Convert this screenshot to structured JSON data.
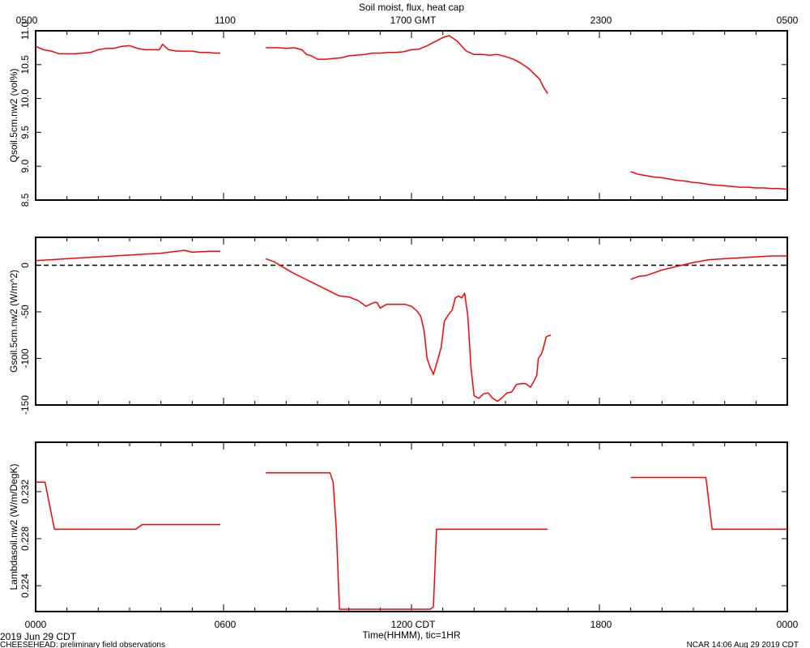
{
  "title": "Soil moist, flux, heat cap",
  "top_axis": {
    "ticks": [
      "0500",
      "1100",
      "1700 GMT",
      "2300",
      "0500"
    ]
  },
  "bottom_axis": {
    "ticks": [
      "0000",
      "0600",
      "1200 CDT",
      "1800",
      "0000"
    ],
    "label": "Time(HHMM), tic=1HR",
    "start_date": "2019 Jun 29 CDT"
  },
  "footer": {
    "left": "CHEESEHEAD: preliminary field observations",
    "right": "NCAR 14:06 Aug 29 2019 CDT"
  },
  "colors": {
    "series": "#ff0000",
    "axis": "#000000",
    "zero_line": "#000000"
  },
  "chart_data": [
    {
      "type": "line",
      "ylabel": "Qsoil.5cm.nw2 (vol%)",
      "ylim": [
        8.5,
        11.0
      ],
      "yticks": [
        "8.5",
        "9.0",
        "9.5",
        "10.0",
        "10.5",
        "11.0"
      ],
      "x_unit": "hours from 0000 CDT",
      "xlim": [
        0,
        24
      ],
      "grid": false,
      "series": [
        {
          "segments": [
            [
              [
                0.0,
                10.77
              ],
              [
                0.25,
                10.72
              ],
              [
                0.5,
                10.7
              ],
              [
                0.75,
                10.66
              ],
              [
                1.0,
                10.66
              ],
              [
                1.25,
                10.66
              ],
              [
                1.5,
                10.67
              ],
              [
                1.75,
                10.68
              ],
              [
                2.0,
                10.72
              ],
              [
                2.25,
                10.74
              ],
              [
                2.5,
                10.74
              ],
              [
                2.75,
                10.77
              ],
              [
                3.0,
                10.78
              ],
              [
                3.25,
                10.74
              ],
              [
                3.5,
                10.72
              ],
              [
                3.75,
                10.72
              ],
              [
                3.95,
                10.72
              ],
              [
                4.05,
                10.8
              ],
              [
                4.25,
                10.72
              ],
              [
                4.5,
                10.7
              ],
              [
                4.75,
                10.7
              ],
              [
                5.0,
                10.7
              ],
              [
                5.25,
                10.68
              ],
              [
                5.5,
                10.68
              ],
              [
                5.75,
                10.67
              ],
              [
                5.9,
                10.67
              ]
            ],
            [
              [
                7.35,
                10.75
              ],
              [
                7.5,
                10.75
              ],
              [
                7.75,
                10.75
              ],
              [
                8.0,
                10.74
              ],
              [
                8.25,
                10.75
              ],
              [
                8.5,
                10.72
              ],
              [
                8.65,
                10.65
              ],
              [
                8.8,
                10.63
              ],
              [
                9.0,
                10.58
              ],
              [
                9.25,
                10.58
              ],
              [
                9.5,
                10.59
              ],
              [
                9.75,
                10.6
              ],
              [
                10.0,
                10.63
              ],
              [
                10.25,
                10.64
              ],
              [
                10.5,
                10.65
              ],
              [
                10.75,
                10.67
              ],
              [
                11.0,
                10.67
              ],
              [
                11.25,
                10.68
              ],
              [
                11.5,
                10.68
              ],
              [
                11.75,
                10.69
              ],
              [
                12.0,
                10.72
              ],
              [
                12.25,
                10.73
              ],
              [
                12.5,
                10.78
              ],
              [
                12.75,
                10.84
              ],
              [
                13.0,
                10.9
              ],
              [
                13.2,
                10.93
              ],
              [
                13.45,
                10.85
              ],
              [
                13.75,
                10.7
              ],
              [
                14.0,
                10.65
              ],
              [
                14.25,
                10.65
              ],
              [
                14.5,
                10.64
              ],
              [
                14.75,
                10.65
              ],
              [
                15.0,
                10.62
              ],
              [
                15.25,
                10.58
              ],
              [
                15.5,
                10.52
              ],
              [
                15.75,
                10.44
              ],
              [
                15.95,
                10.35
              ],
              [
                16.1,
                10.28
              ],
              [
                16.2,
                10.18
              ],
              [
                16.35,
                10.07
              ]
            ],
            [
              [
                19.0,
                8.92
              ],
              [
                19.25,
                8.88
              ],
              [
                19.5,
                8.86
              ],
              [
                19.75,
                8.84
              ],
              [
                20.0,
                8.83
              ],
              [
                20.25,
                8.81
              ],
              [
                20.5,
                8.79
              ],
              [
                20.75,
                8.78
              ],
              [
                21.0,
                8.76
              ],
              [
                21.25,
                8.75
              ],
              [
                21.5,
                8.73
              ],
              [
                21.75,
                8.72
              ],
              [
                22.0,
                8.71
              ],
              [
                22.25,
                8.7
              ],
              [
                22.5,
                8.69
              ],
              [
                22.75,
                8.69
              ],
              [
                23.0,
                8.68
              ],
              [
                23.25,
                8.68
              ],
              [
                23.5,
                8.67
              ],
              [
                23.75,
                8.67
              ],
              [
                24.0,
                8.66
              ]
            ]
          ]
        }
      ]
    },
    {
      "type": "line",
      "ylabel": "Gsoil.5cm.nw2 (W/m^2)",
      "ylim": [
        -150,
        30
      ],
      "yticks": [
        "-150",
        "-100",
        "-50",
        "0"
      ],
      "reference_line": {
        "y": 0,
        "style": "dashed"
      },
      "x_unit": "hours from 0000 CDT",
      "xlim": [
        0,
        24
      ],
      "grid": false,
      "series": [
        {
          "segments": [
            [
              [
                0.0,
                5
              ],
              [
                0.5,
                6
              ],
              [
                1.0,
                7
              ],
              [
                1.5,
                8
              ],
              [
                2.0,
                9
              ],
              [
                2.5,
                10
              ],
              [
                3.0,
                11
              ],
              [
                3.5,
                12
              ],
              [
                4.0,
                13
              ],
              [
                4.5,
                15
              ],
              [
                4.75,
                16
              ],
              [
                5.0,
                14
              ],
              [
                5.5,
                15
              ],
              [
                5.9,
                15
              ]
            ],
            [
              [
                7.35,
                7
              ],
              [
                7.6,
                4
              ],
              [
                7.9,
                -2
              ],
              [
                8.2,
                -8
              ],
              [
                8.5,
                -13
              ],
              [
                8.8,
                -18
              ],
              [
                9.1,
                -23
              ],
              [
                9.4,
                -28
              ],
              [
                9.7,
                -33
              ],
              [
                10.0,
                -34
              ],
              [
                10.3,
                -38
              ],
              [
                10.55,
                -44
              ],
              [
                10.8,
                -40
              ],
              [
                10.9,
                -40
              ],
              [
                11.0,
                -46
              ],
              [
                11.2,
                -42
              ],
              [
                11.5,
                -42
              ],
              [
                11.8,
                -42
              ],
              [
                12.0,
                -44
              ],
              [
                12.2,
                -50
              ],
              [
                12.3,
                -55
              ],
              [
                12.4,
                -70
              ],
              [
                12.5,
                -100
              ],
              [
                12.6,
                -110
              ],
              [
                12.7,
                -117
              ],
              [
                12.85,
                -100
              ],
              [
                12.95,
                -88
              ],
              [
                13.05,
                -60
              ],
              [
                13.2,
                -52
              ],
              [
                13.3,
                -48
              ],
              [
                13.4,
                -35
              ],
              [
                13.5,
                -33
              ],
              [
                13.6,
                -35
              ],
              [
                13.7,
                -30
              ],
              [
                13.8,
                -55
              ],
              [
                13.9,
                -110
              ],
              [
                14.0,
                -140
              ],
              [
                14.15,
                -143
              ],
              [
                14.3,
                -138
              ],
              [
                14.45,
                -137
              ],
              [
                14.6,
                -143
              ],
              [
                14.75,
                -146
              ],
              [
                14.9,
                -142
              ],
              [
                15.05,
                -137
              ],
              [
                15.2,
                -136
              ],
              [
                15.35,
                -128
              ],
              [
                15.5,
                -127
              ],
              [
                15.65,
                -127
              ],
              [
                15.8,
                -131
              ],
              [
                15.9,
                -125
              ],
              [
                16.0,
                -118
              ],
              [
                16.05,
                -100
              ],
              [
                16.15,
                -95
              ],
              [
                16.2,
                -90
              ],
              [
                16.3,
                -77
              ],
              [
                16.35,
                -76
              ],
              [
                16.45,
                -75
              ]
            ],
            [
              [
                19.0,
                -15
              ],
              [
                19.25,
                -12
              ],
              [
                19.5,
                -11
              ],
              [
                19.75,
                -8
              ],
              [
                20.0,
                -5
              ],
              [
                20.5,
                -1
              ],
              [
                21.0,
                3
              ],
              [
                21.5,
                6
              ],
              [
                22.0,
                7
              ],
              [
                22.5,
                8
              ],
              [
                23.0,
                9
              ],
              [
                23.5,
                10
              ],
              [
                24.0,
                10
              ]
            ]
          ]
        }
      ]
    },
    {
      "type": "line",
      "ylabel": "Lambdasoil.nw2 (W/m/DegK)",
      "ylim": [
        0.2218,
        0.2362
      ],
      "yticks": [
        "0.224",
        "0.228",
        "0.232"
      ],
      "x_unit": "hours from 0000 CDT",
      "xlim": [
        0,
        24
      ],
      "grid": false,
      "series": [
        {
          "segments": [
            [
              [
                0.0,
                0.2328
              ],
              [
                0.3,
                0.2328
              ],
              [
                0.45,
                0.2308
              ],
              [
                0.6,
                0.2288
              ],
              [
                1.0,
                0.2288
              ],
              [
                2.0,
                0.2288
              ],
              [
                3.0,
                0.2288
              ],
              [
                3.2,
                0.2288
              ],
              [
                3.4,
                0.2292
              ],
              [
                3.5,
                0.2292
              ],
              [
                4.0,
                0.2292
              ],
              [
                5.0,
                0.2292
              ],
              [
                5.9,
                0.2292
              ]
            ],
            [
              [
                7.35,
                0.2336
              ],
              [
                8.0,
                0.2336
              ],
              [
                9.0,
                0.2336
              ],
              [
                9.4,
                0.2336
              ],
              [
                9.5,
                0.2328
              ],
              [
                9.6,
                0.2288
              ],
              [
                9.7,
                0.222
              ],
              [
                10.0,
                0.222
              ],
              [
                11.0,
                0.222
              ],
              [
                12.0,
                0.222
              ],
              [
                12.6,
                0.222
              ],
              [
                12.7,
                0.2222
              ],
              [
                12.8,
                0.2288
              ],
              [
                13.0,
                0.2288
              ],
              [
                14.0,
                0.2288
              ],
              [
                15.0,
                0.2288
              ],
              [
                16.35,
                0.2288
              ]
            ],
            [
              [
                19.0,
                0.2332
              ],
              [
                20.0,
                0.2332
              ],
              [
                21.0,
                0.2332
              ],
              [
                21.4,
                0.2332
              ],
              [
                21.5,
                0.231
              ],
              [
                21.6,
                0.2288
              ],
              [
                22.0,
                0.2288
              ],
              [
                23.0,
                0.2288
              ],
              [
                24.0,
                0.2288
              ]
            ]
          ]
        }
      ]
    }
  ]
}
